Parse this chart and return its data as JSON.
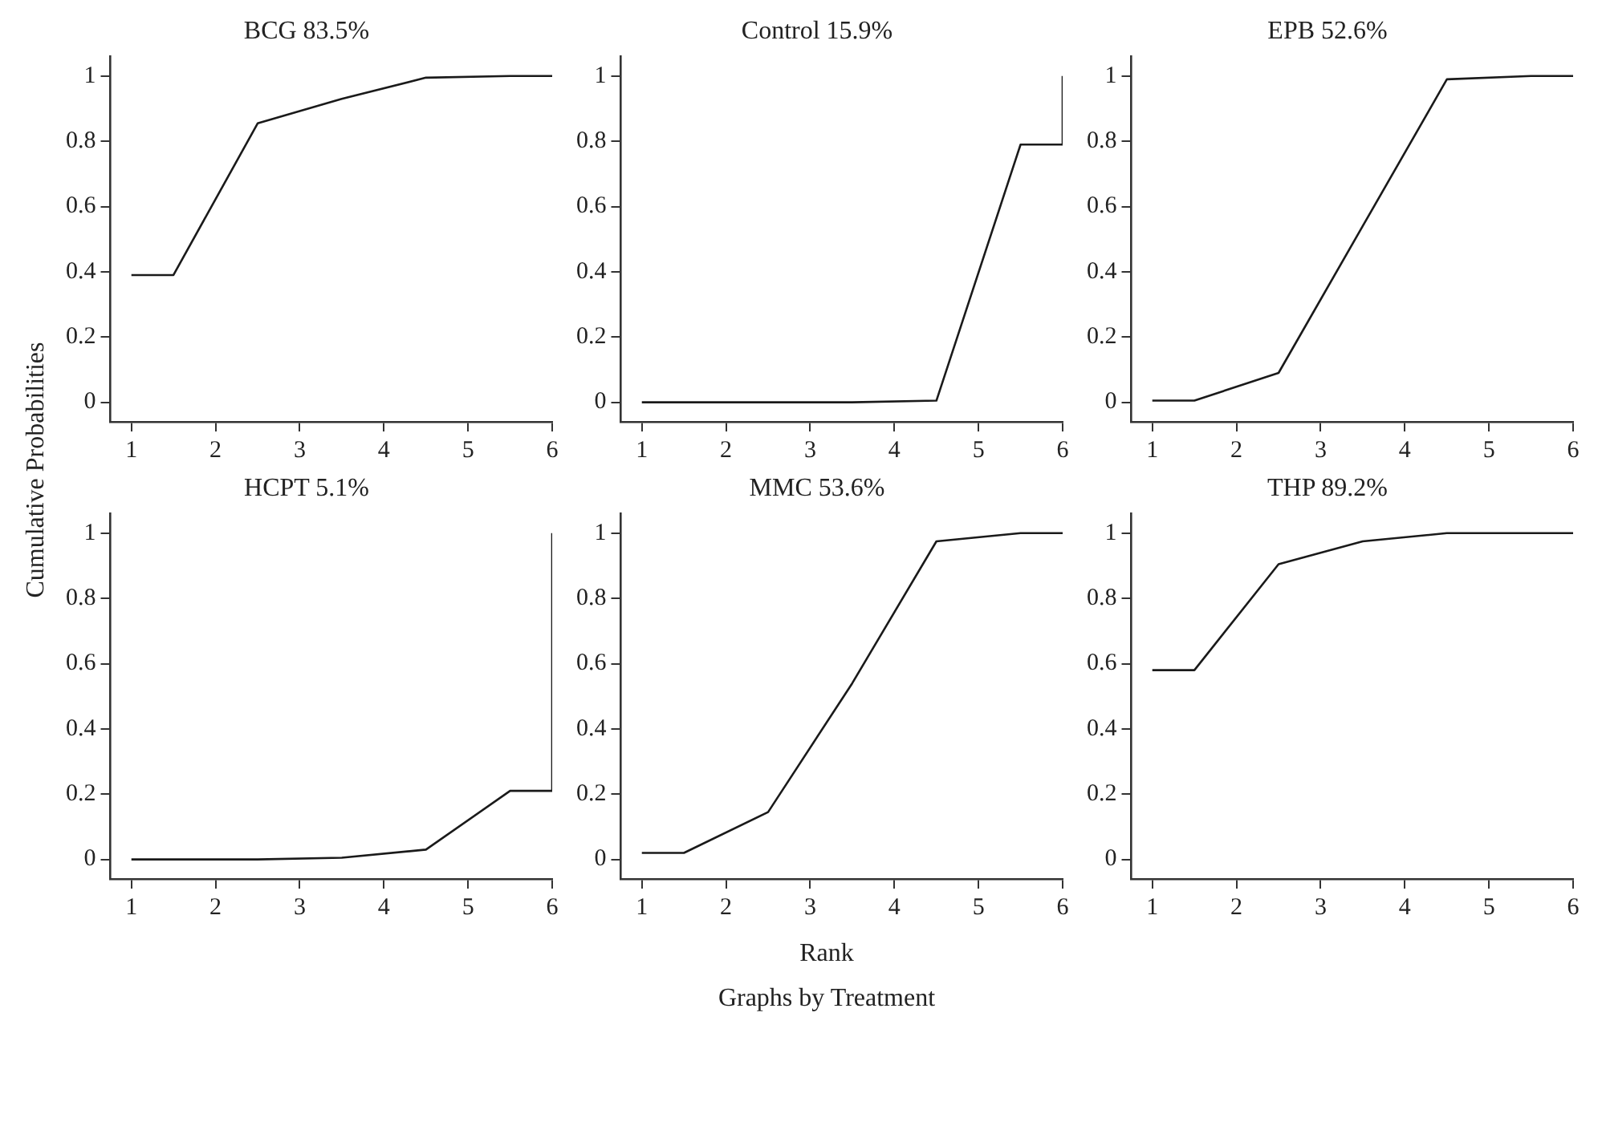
{
  "chart_data": [
    {
      "type": "line",
      "title": "BCG 83.5%",
      "x": [
        1,
        1.5,
        2.5,
        3.5,
        4.5,
        5.5,
        6,
        6
      ],
      "values": [
        0.39,
        0.39,
        0.855,
        0.93,
        0.995,
        1,
        1,
        1
      ],
      "color": "#1a1a1a",
      "xlim": [
        0.75,
        6
      ],
      "ylim": [
        -0.06,
        1.06
      ],
      "xticks": [
        1,
        2,
        3,
        4,
        5,
        6
      ],
      "yticks": [
        0,
        0.2,
        0.4,
        0.6,
        0.8,
        1
      ],
      "grid": false
    },
    {
      "type": "line",
      "title": "Control 15.9%",
      "x": [
        1,
        1.5,
        2.5,
        3.5,
        4.5,
        5.5,
        6,
        6
      ],
      "values": [
        0,
        0,
        0,
        0,
        0.005,
        0.79,
        0.79,
        1
      ],
      "color": "#1a1a1a",
      "xlim": [
        0.75,
        6
      ],
      "ylim": [
        -0.06,
        1.06
      ],
      "xticks": [
        1,
        2,
        3,
        4,
        5,
        6
      ],
      "yticks": [
        0,
        0.2,
        0.4,
        0.6,
        0.8,
        1
      ],
      "grid": false
    },
    {
      "type": "line",
      "title": "EPB 52.6%",
      "x": [
        1,
        1.5,
        2.5,
        3.5,
        4.5,
        5.5,
        6,
        6
      ],
      "values": [
        0.005,
        0.005,
        0.09,
        0.54,
        0.99,
        1,
        1,
        1
      ],
      "color": "#1a1a1a",
      "xlim": [
        0.75,
        6
      ],
      "ylim": [
        -0.06,
        1.06
      ],
      "xticks": [
        1,
        2,
        3,
        4,
        5,
        6
      ],
      "yticks": [
        0,
        0.2,
        0.4,
        0.6,
        0.8,
        1
      ],
      "grid": false
    },
    {
      "type": "line",
      "title": "HCPT 5.1%",
      "ylabel": "Cumulative Probabilities",
      "x": [
        1,
        1.5,
        2.5,
        3.5,
        4.5,
        5.5,
        6,
        6
      ],
      "values": [
        0,
        0,
        0,
        0.005,
        0.03,
        0.21,
        0.21,
        1
      ],
      "color": "#1a1a1a",
      "xlim": [
        0.75,
        6
      ],
      "ylim": [
        -0.06,
        1.06
      ],
      "xticks": [
        1,
        2,
        3,
        4,
        5,
        6
      ],
      "yticks": [
        0,
        0.2,
        0.4,
        0.6,
        0.8,
        1
      ],
      "grid": false
    },
    {
      "type": "line",
      "title": "MMC 53.6%",
      "xlabel": "Rank",
      "annotations": [
        "Graphs by Treatment"
      ],
      "x": [
        1,
        1.5,
        2.5,
        3.5,
        4.5,
        5.5,
        6,
        6
      ],
      "values": [
        0.02,
        0.02,
        0.145,
        0.54,
        0.975,
        1,
        1,
        1
      ],
      "color": "#1a1a1a",
      "xlim": [
        0.75,
        6
      ],
      "ylim": [
        -0.06,
        1.06
      ],
      "xticks": [
        1,
        2,
        3,
        4,
        5,
        6
      ],
      "yticks": [
        0,
        0.2,
        0.4,
        0.6,
        0.8,
        1
      ],
      "grid": false
    },
    {
      "type": "line",
      "title": "THP 89.2%",
      "x": [
        1,
        1.5,
        2.5,
        3.5,
        4.5,
        5.5,
        6,
        6
      ],
      "values": [
        0.58,
        0.58,
        0.905,
        0.975,
        1,
        1,
        1,
        1
      ],
      "color": "#1a1a1a",
      "xlim": [
        0.75,
        6
      ],
      "ylim": [
        -0.06,
        1.06
      ],
      "xticks": [
        1,
        2,
        3,
        4,
        5,
        6
      ],
      "yticks": [
        0,
        0.2,
        0.4,
        0.6,
        0.8,
        1
      ],
      "grid": false
    }
  ]
}
